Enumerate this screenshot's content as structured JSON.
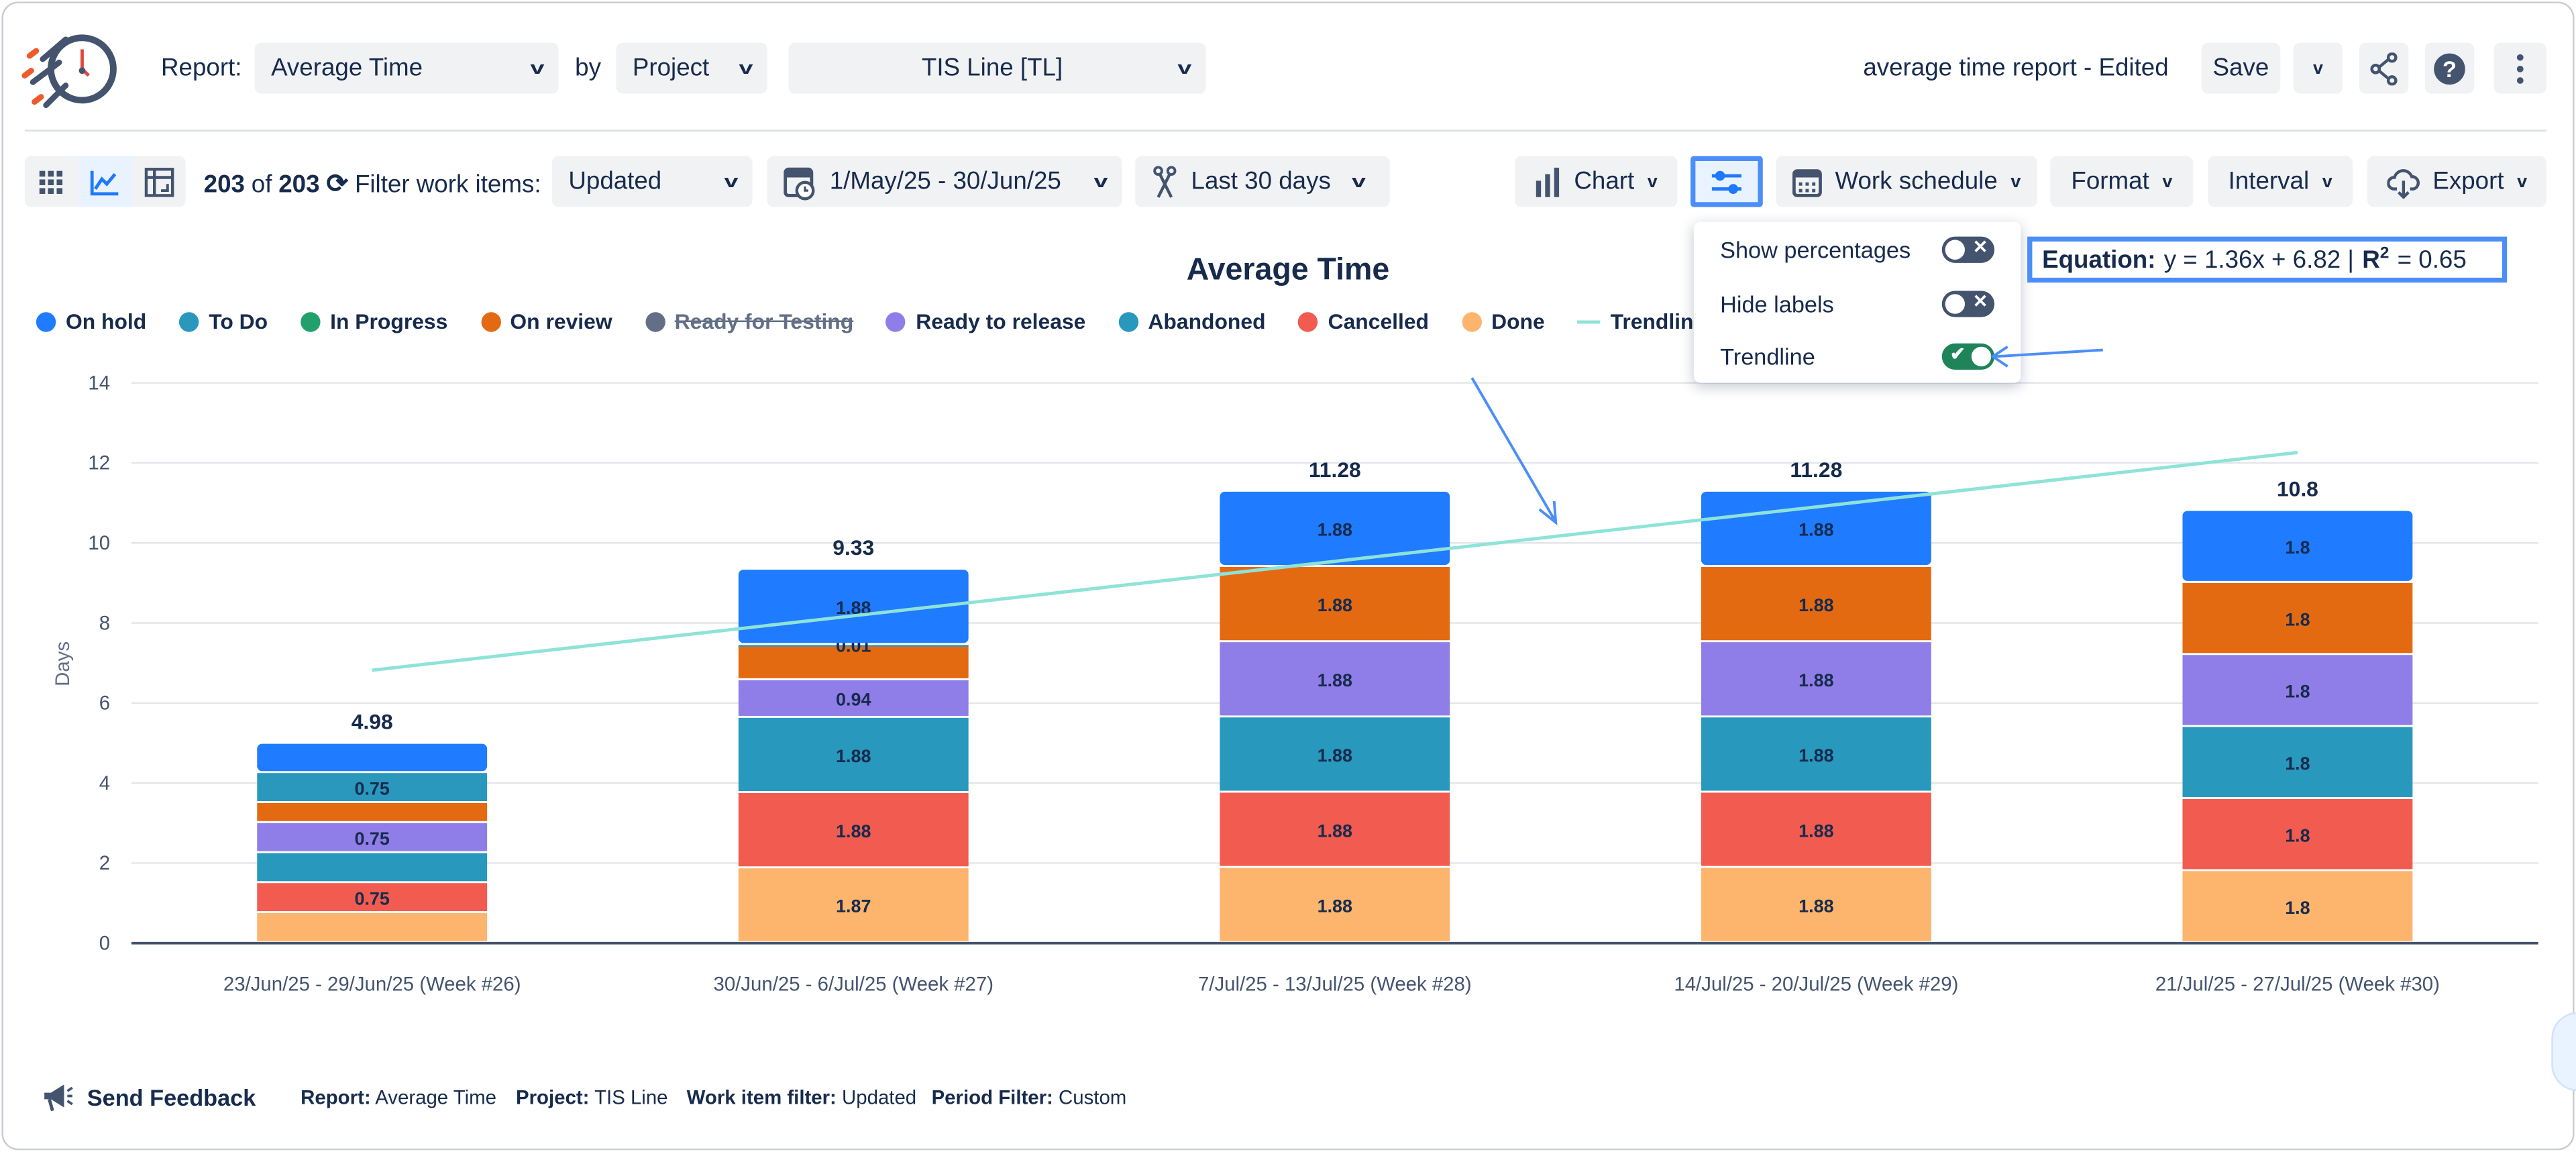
{
  "header": {
    "report_label": "Report:",
    "report_value": "Average Time",
    "by_label": "by",
    "group_value": "Project",
    "project_value": "TIS Line [TL]",
    "report_name": "average time report - Edited",
    "save_label": "Save"
  },
  "toolbar": {
    "count": "203",
    "of_label": "of",
    "total": "203",
    "filter_label": "Filter work items:",
    "filter_value": "Updated",
    "date_range": "1/May/25 - 30/Jun/25",
    "period": "Last 30 days",
    "chart_label": "Chart",
    "work_schedule_label": "Work schedule",
    "format_label": "Format",
    "interval_label": "Interval",
    "export_label": "Export"
  },
  "options_menu": {
    "items": [
      {
        "label": "Show percentages",
        "on": false
      },
      {
        "label": "Hide labels",
        "on": false
      },
      {
        "label": "Trendline",
        "on": true
      }
    ]
  },
  "equation": {
    "label": "Equation:",
    "formula": "y = 1.36x + 6.82 |",
    "r2_label": "R",
    "r2_sup": "2",
    "r2_value": "= 0.65"
  },
  "chart_data": {
    "type": "bar",
    "stacked": true,
    "title": "Average Time",
    "ylabel": "Days",
    "xlabel": "",
    "ylim": [
      0,
      14
    ],
    "yticks": [
      "0",
      "2",
      "4",
      "6",
      "8",
      "10",
      "12",
      "14"
    ],
    "grid": true,
    "legend_position": "top-left",
    "categories": [
      "23/Jun/25 - 29/Jun/25 (Week #26)",
      "30/Jun/25 - 6/Jul/25 (Week #27)",
      "7/Jul/25 - 13/Jul/25 (Week #28)",
      "14/Jul/25 - 20/Jul/25 (Week #29)",
      "21/Jul/25 - 27/Jul/25 (Week #30)"
    ],
    "totals": [
      "4.98",
      "9.33",
      "11.28",
      "11.28",
      "10.8"
    ],
    "legend": [
      {
        "name": "On hold",
        "color": "#1f7bff"
      },
      {
        "name": "To Do",
        "color": "#2a98bd"
      },
      {
        "name": "In Progress",
        "color": "#22a06b"
      },
      {
        "name": "On review",
        "color": "#e46a12"
      },
      {
        "name": "Ready for Testing",
        "color": "#626f86",
        "hidden": true
      },
      {
        "name": "Ready to release",
        "color": "#8f7ee7"
      },
      {
        "name": "Abandoned",
        "color": "#2898bd"
      },
      {
        "name": "Cancelled",
        "color": "#f15b50"
      },
      {
        "name": "Done",
        "color": "#fdb46c"
      },
      {
        "name": "Trendline",
        "color": "#8ee3d8",
        "line": true
      }
    ],
    "series": [
      {
        "name": "Done",
        "color": "#fdb46c",
        "values": [
          0.75,
          1.87,
          1.88,
          1.88,
          1.8
        ],
        "labels": [
          "",
          "1.87",
          "1.88",
          "1.88",
          "1.8"
        ]
      },
      {
        "name": "Cancelled",
        "color": "#f15b50",
        "values": [
          0.75,
          1.88,
          1.88,
          1.88,
          1.8
        ],
        "labels": [
          "0.75",
          "1.88",
          "1.88",
          "1.88",
          "1.8"
        ]
      },
      {
        "name": "Abandoned",
        "color": "#2898bd",
        "values": [
          0.75,
          1.88,
          1.88,
          1.88,
          1.8
        ],
        "labels": [
          "",
          "1.88",
          "1.88",
          "1.88",
          "1.8"
        ]
      },
      {
        "name": "Ready to release",
        "color": "#8f7ee7",
        "values": [
          0.75,
          0.94,
          1.88,
          1.88,
          1.8
        ],
        "labels": [
          "0.75",
          "0.94",
          "1.88",
          "1.88",
          "1.8"
        ]
      },
      {
        "name": "On review",
        "color": "#e46a12",
        "values": [
          0.5,
          0.87,
          1.88,
          1.88,
          1.8
        ],
        "labels": [
          "",
          "",
          "1.88",
          "1.88",
          "1.8"
        ]
      },
      {
        "name": "In Progress",
        "color": "#22a06b",
        "values": [
          0,
          0,
          0,
          0,
          0
        ],
        "labels": [
          "",
          "",
          "",
          "",
          ""
        ]
      },
      {
        "name": "To Do",
        "color": "#2a98bd",
        "values": [
          0.75,
          0.01,
          0,
          0,
          0
        ],
        "labels": [
          "0.75",
          "0.01",
          "",
          "",
          ""
        ]
      },
      {
        "name": "On hold",
        "color": "#1f7bff",
        "values": [
          0.73,
          1.88,
          1.88,
          1.88,
          1.8
        ],
        "labels": [
          "",
          "1.88",
          "1.88",
          "1.88",
          "1.8"
        ]
      }
    ],
    "trendline": {
      "slope": 1.36,
      "intercept": 6.82,
      "color": "#8ee3d8"
    }
  },
  "footer": {
    "feedback_label": "Send Feedback",
    "report_key": "Report:",
    "report_val": "Average Time",
    "project_key": "Project:",
    "project_val": "TIS Line",
    "filter_key": "Work item filter:",
    "filter_val": "Updated",
    "period_key": "Period Filter:",
    "period_val": "Custom"
  },
  "colors": {
    "accent": "#1d7afc",
    "toggle_on": "#1f845a",
    "toggle_off": "#44546f"
  }
}
